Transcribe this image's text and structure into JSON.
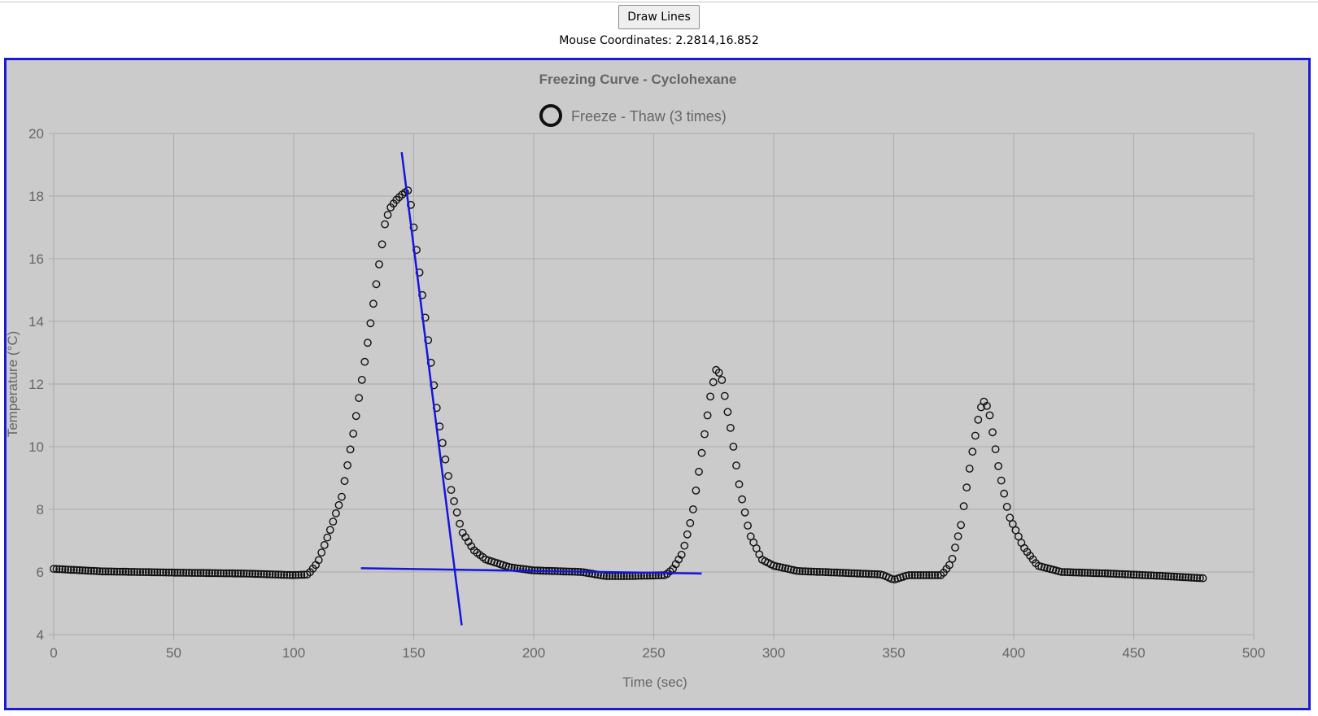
{
  "controls": {
    "draw_button_label": "Draw Lines",
    "mouse_label": "Mouse Coordinates:",
    "mouse_value": "2.2814,16.852"
  },
  "colors": {
    "frame_border": "#1a1ad6",
    "plot_background": "#cbcbcb",
    "grid": "#a9a9a9",
    "points": "#111111",
    "trend_lines": "#1515e0"
  },
  "chart_data": {
    "type": "scatter",
    "title": "Freezing Curve - Cyclohexane",
    "xlabel": "Time (sec)",
    "ylabel": "Temperature (°C)",
    "xlim": [
      0,
      500
    ],
    "ylim": [
      4,
      20
    ],
    "x_ticks": [
      0,
      50,
      100,
      150,
      200,
      250,
      300,
      350,
      400,
      450,
      500
    ],
    "y_ticks": [
      4,
      6,
      8,
      10,
      12,
      14,
      16,
      18,
      20
    ],
    "grid": true,
    "legend": {
      "position": "top-center"
    },
    "series": [
      {
        "name": "Freeze - Thaw (3 times)",
        "marker": "hollow-circle",
        "sampling_interval_sec": 1.2,
        "duration_sec": 479,
        "keypoints": [
          [
            0,
            6.1
          ],
          [
            20,
            6.02
          ],
          [
            50,
            5.98
          ],
          [
            80,
            5.95
          ],
          [
            100,
            5.9
          ],
          [
            106,
            5.92
          ],
          [
            110,
            6.3
          ],
          [
            115,
            7.3
          ],
          [
            120,
            8.4
          ],
          [
            125,
            10.5
          ],
          [
            130,
            12.9
          ],
          [
            135,
            15.5
          ],
          [
            138,
            17.1
          ],
          [
            140,
            17.6
          ],
          [
            143,
            17.9
          ],
          [
            146,
            18.1
          ],
          [
            148,
            18.2
          ],
          [
            150,
            17.0
          ],
          [
            155,
            14.0
          ],
          [
            160,
            11.0
          ],
          [
            165,
            8.8
          ],
          [
            170,
            7.3
          ],
          [
            175,
            6.7
          ],
          [
            180,
            6.4
          ],
          [
            190,
            6.15
          ],
          [
            200,
            6.05
          ],
          [
            220,
            6.0
          ],
          [
            230,
            5.87
          ],
          [
            240,
            5.87
          ],
          [
            255,
            5.9
          ],
          [
            258,
            6.1
          ],
          [
            262,
            6.6
          ],
          [
            266,
            7.8
          ],
          [
            270,
            9.8
          ],
          [
            274,
            11.8
          ],
          [
            276,
            12.45
          ],
          [
            278,
            12.3
          ],
          [
            282,
            10.6
          ],
          [
            286,
            8.6
          ],
          [
            290,
            7.2
          ],
          [
            295,
            6.4
          ],
          [
            300,
            6.2
          ],
          [
            310,
            6.03
          ],
          [
            330,
            5.97
          ],
          [
            345,
            5.92
          ],
          [
            350,
            5.75
          ],
          [
            356,
            5.9
          ],
          [
            370,
            5.9
          ],
          [
            374,
            6.3
          ],
          [
            378,
            7.5
          ],
          [
            382,
            9.5
          ],
          [
            386,
            11.2
          ],
          [
            388,
            11.5
          ],
          [
            390,
            11.0
          ],
          [
            394,
            9.2
          ],
          [
            398,
            7.8
          ],
          [
            404,
            6.8
          ],
          [
            410,
            6.2
          ],
          [
            420,
            6.0
          ],
          [
            440,
            5.95
          ],
          [
            460,
            5.88
          ],
          [
            479,
            5.8
          ]
        ]
      }
    ],
    "annotations": [
      {
        "type": "line",
        "x1": 145,
        "y1": 19.4,
        "x2": 170,
        "y2": 4.3
      },
      {
        "type": "line",
        "x1": 128,
        "y1": 6.12,
        "x2": 270,
        "y2": 5.95
      }
    ]
  }
}
